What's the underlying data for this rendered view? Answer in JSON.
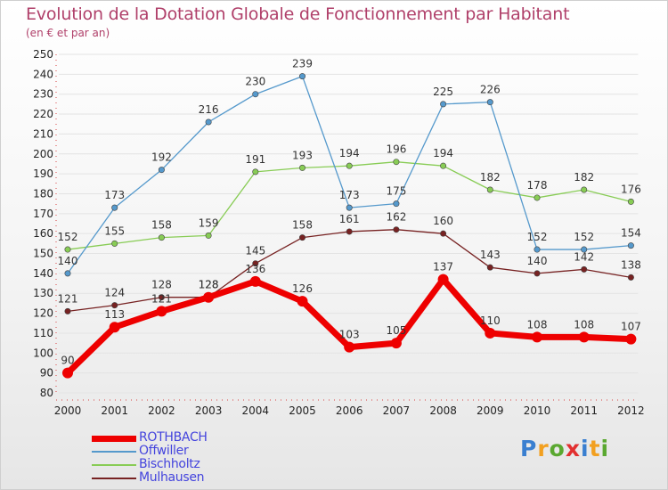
{
  "chart_data": {
    "type": "line",
    "title": "Evolution de la Dotation Globale de Fonctionnement par Habitant",
    "subtitle": "(en € et par an)",
    "categories": [
      "2000",
      "2001",
      "2002",
      "2003",
      "2004",
      "2005",
      "2006",
      "2007",
      "2008",
      "2009",
      "2010",
      "2011",
      "2012"
    ],
    "ylim": [
      80,
      250
    ],
    "ytick_step": 10,
    "grid": "horizontal",
    "series": [
      {
        "name": "ROTHBACH",
        "color": "#ee0000",
        "values": [
          90,
          113,
          121,
          128,
          136,
          126,
          103,
          105,
          137,
          110,
          108,
          108,
          107
        ]
      },
      {
        "name": "Offwiller",
        "color": "#5599cc",
        "values": [
          140,
          173,
          192,
          216,
          230,
          239,
          173,
          175,
          225,
          226,
          152,
          152,
          154
        ]
      },
      {
        "name": "Bischholtz",
        "color": "#88cc55",
        "values": [
          152,
          155,
          158,
          159,
          191,
          193,
          194,
          196,
          194,
          182,
          178,
          182,
          176
        ]
      },
      {
        "name": "Mulhausen",
        "color": "#772222",
        "values": [
          121,
          124,
          128,
          128,
          145,
          158,
          161,
          162,
          160,
          143,
          140,
          142,
          138
        ]
      }
    ]
  },
  "logo": {
    "letters": [
      "P",
      "r",
      "o",
      "x",
      "i",
      "t",
      "i"
    ],
    "colors": [
      "#3a7fd0",
      "#f2a020",
      "#5aa830",
      "#e23030",
      "#3a7fd0",
      "#f2a020",
      "#5aa830"
    ]
  }
}
